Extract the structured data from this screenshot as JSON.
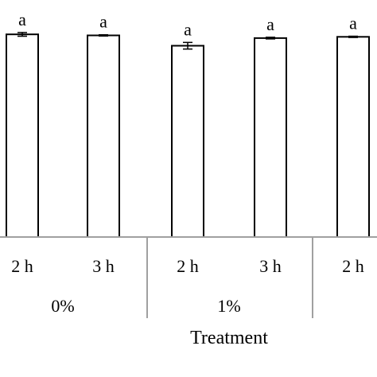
{
  "chart_data": {
    "type": "bar",
    "xlabel": "Treatment",
    "ylabel": "",
    "title": "",
    "ylim": [
      0,
      100
    ],
    "grid": false,
    "categories": [
      "2 h",
      "3 h",
      "2 h",
      "3 h",
      "2 h"
    ],
    "groups": [
      {
        "label": "0%",
        "span": [
          0,
          1
        ]
      },
      {
        "label": "1%",
        "span": [
          2,
          3
        ]
      }
    ],
    "values": [
      98.0,
      97.5,
      92.5,
      96.2,
      96.8
    ],
    "errors": [
      0.9,
      0.3,
      1.6,
      0.4,
      0.3
    ],
    "significance": [
      "a",
      "a",
      "a",
      "a",
      "a"
    ],
    "colors": {
      "bar_fill": "#ffffff",
      "bar_stroke": "#000000",
      "axis": "#a0a0a0"
    }
  }
}
